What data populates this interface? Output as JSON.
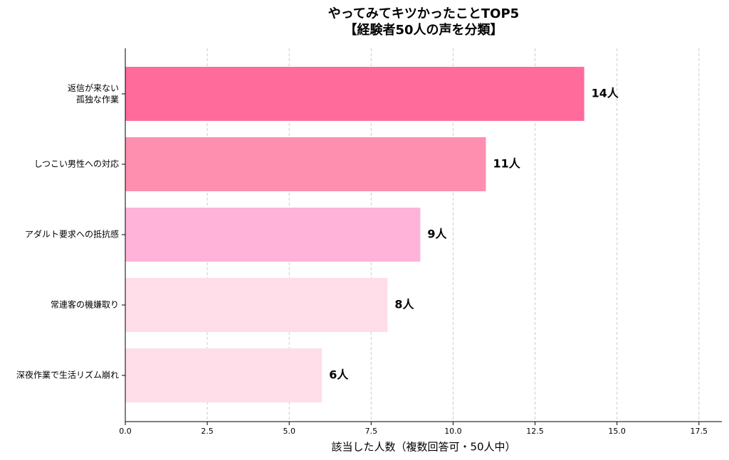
{
  "chart_data": {
    "type": "barh",
    "title": "やってみてキツかったことTOP5",
    "subtitle": "【経験者50人の声を分類】",
    "xlabel": "該当した人数（複数回答可・50人中）",
    "categories": [
      "返信が来ない\n孤独な作業",
      "しつこい男性への対応",
      "アダルト要求への抵抗感",
      "常連客の機嫌取り",
      "深夜作業で生活リズム崩れ"
    ],
    "values": [
      14,
      11,
      9,
      8,
      6
    ],
    "value_labels": [
      "14人",
      "11人",
      "9人",
      "8人",
      "6人"
    ],
    "colors": [
      "#ff6b9a",
      "#ff8fae",
      "#ffb3d9",
      "#ffdde9",
      "#ffdde9"
    ],
    "xlim": [
      0,
      18.2
    ],
    "xticks": [
      {
        "value": 0,
        "label": "0.0"
      },
      2.5,
      {
        "value": 5,
        "label": "5.0"
      },
      7.5,
      {
        "value": 10,
        "label": "10.0"
      },
      12.5,
      {
        "value": 15,
        "label": "15.0"
      },
      17.5
    ],
    "grid": true
  }
}
